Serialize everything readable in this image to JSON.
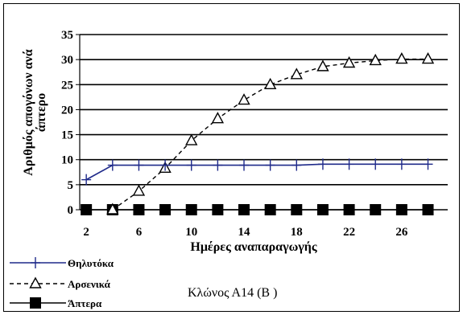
{
  "chart_data": {
    "type": "line",
    "xlabel": "Ημέρες αναπαραγωγής",
    "ylabel_lines": [
      "Αριθμός απογόνων ανά",
      "άπτερο"
    ],
    "xlim": [
      1.5,
      29.5
    ],
    "ylim": [
      0,
      35
    ],
    "y_ticks": [
      0,
      5,
      10,
      15,
      20,
      25,
      30,
      35
    ],
    "x_ticks": [
      2,
      6,
      10,
      14,
      18,
      22,
      26
    ],
    "grid": "horizontal",
    "legend_position": "bottom-left",
    "annotation": "Κλώνος Α14 (Β )",
    "series": [
      {
        "name": "Θηλυτόκα",
        "marker": "plus",
        "line": "solid",
        "color": "#1f2a8a",
        "x": [
          2,
          4,
          6,
          8,
          10,
          12,
          14,
          16,
          18,
          20,
          22,
          24,
          26,
          28
        ],
        "y": [
          6,
          8.9,
          8.9,
          8.9,
          8.9,
          8.9,
          8.9,
          8.9,
          8.9,
          9.1,
          9.1,
          9.1,
          9.1,
          9.1
        ]
      },
      {
        "name": "Αρσενικά",
        "marker": "triangle",
        "line": "dashed",
        "color": "#000000",
        "x": [
          4,
          6,
          8,
          10,
          12,
          14,
          16,
          18,
          20,
          22,
          24,
          26,
          28
        ],
        "y": [
          0,
          3.7,
          8.3,
          13.8,
          18.2,
          21.9,
          25,
          27,
          28.6,
          29.3,
          29.8,
          30.1,
          30.1
        ]
      },
      {
        "name": "Άπτερα",
        "marker": "square",
        "line": "solid",
        "color": "#000000",
        "x": [
          2,
          4,
          6,
          8,
          10,
          12,
          14,
          16,
          18,
          20,
          22,
          24,
          26,
          28
        ],
        "y": [
          0,
          0,
          0,
          0,
          0,
          0,
          0,
          0,
          0,
          0,
          0,
          0,
          0,
          0
        ]
      }
    ]
  }
}
